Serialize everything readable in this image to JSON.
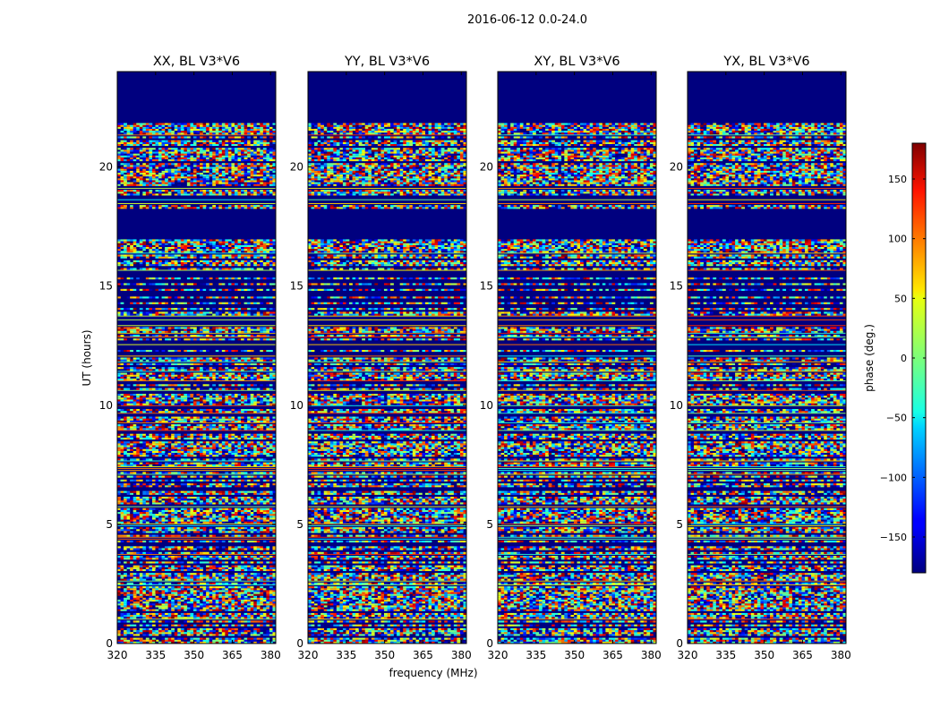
{
  "chart_data": {
    "type": "heatmap",
    "suptitle": "2016-06-12 0.0-24.0",
    "xlabel": "frequency (MHz)",
    "ylabel": "UT (hours)",
    "xlim": [
      320,
      382
    ],
    "ylim": [
      0,
      24
    ],
    "xticks": [
      320,
      335,
      350,
      365,
      380
    ],
    "yticks": [
      0,
      5,
      10,
      15,
      20
    ],
    "panels": [
      {
        "title": "XX, BL V3*V6",
        "polarization": "XX"
      },
      {
        "title": "YY, BL V3*V6",
        "polarization": "YY"
      },
      {
        "title": "XY, BL V3*V6",
        "polarization": "XY"
      },
      {
        "title": "YX, BL V3*V6",
        "polarization": "YX"
      }
    ],
    "flagged_ut_ranges": [
      [
        21.8,
        24.0
      ],
      [
        16.9,
        18.2
      ]
    ],
    "colorbar": {
      "label": "phase (deg.)",
      "range": [
        -180,
        180
      ],
      "ticks": [
        150,
        100,
        50,
        0,
        -50,
        -100,
        -150
      ],
      "tick_labels": [
        "150",
        "100",
        "50",
        "0",
        "−50",
        "−100",
        "−150"
      ],
      "colormap": "jet"
    }
  }
}
